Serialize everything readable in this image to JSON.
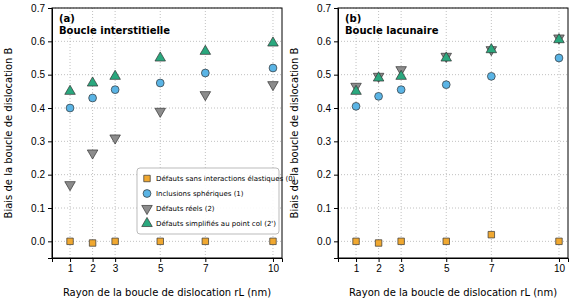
{
  "chart_data": [
    {
      "type": "scatter",
      "title": "(a)",
      "subtitle": "Boucle interstitielle",
      "x_label": "Rayon de la boucle de dislocation rL (nm)",
      "y_label": "Biais de la boucle de dislocation B",
      "x": [
        1,
        2,
        3,
        5,
        7,
        10
      ],
      "xlim": [
        0.2,
        10.4
      ],
      "xticks": [
        1,
        2,
        3,
        5,
        7,
        10
      ],
      "ylim": [
        -0.05,
        0.7
      ],
      "yticks": [
        {
          "value": 0,
          "label": "0.0"
        },
        {
          "value": 0.1,
          "label": "0.1"
        },
        {
          "value": 0.2,
          "label": "0.2"
        },
        {
          "value": 0.3,
          "label": "0.3"
        },
        {
          "value": 0.4,
          "label": "0.4"
        },
        {
          "value": 0.5,
          "label": "0.5"
        },
        {
          "value": 0.6,
          "label": "0.6"
        },
        {
          "value": 0.7,
          "label": "0.7"
        }
      ],
      "grid": true,
      "legend": "lower right",
      "series": [
        {
          "name": "Défauts sans interactions élastiques (0)",
          "color": "#f0a830",
          "marker": "square",
          "values": [
            0,
            -0.005,
            0,
            0,
            0,
            0
          ]
        },
        {
          "name": "Inclusions sphériques (1)",
          "color": "#5ab4e5",
          "marker": "circle",
          "values": [
            0.4,
            0.43,
            0.455,
            0.475,
            0.505,
            0.52
          ]
        },
        {
          "name": "Défauts réels (2)",
          "color": "#8c8c8c",
          "marker": "triangle-down",
          "values": [
            0.17,
            0.265,
            0.31,
            0.39,
            0.44,
            0.47
          ]
        },
        {
          "name": "Défauts simplifiés au point col (2')",
          "color": "#2aa87e",
          "marker": "triangle-up",
          "values": [
            0.45,
            0.475,
            0.495,
            0.55,
            0.57,
            0.595
          ]
        }
      ]
    },
    {
      "type": "scatter",
      "title": "(b)",
      "subtitle": "Boucle lacunaire",
      "x_label": "Rayon de la boucle de dislocation rL (nm)",
      "y_label": "Biais de la boucle de dislocation B",
      "x": [
        1,
        2,
        3,
        5,
        7,
        10
      ],
      "xlim": [
        0.2,
        10.4
      ],
      "xticks": [
        1,
        2,
        3,
        5,
        7,
        10
      ],
      "ylim": [
        -0.05,
        0.7
      ],
      "yticks": [
        {
          "value": 0,
          "label": "0.0"
        },
        {
          "value": 0.1,
          "label": "0.1"
        },
        {
          "value": 0.2,
          "label": "0.2"
        },
        {
          "value": 0.3,
          "label": "0.3"
        },
        {
          "value": 0.4,
          "label": "0.4"
        },
        {
          "value": 0.5,
          "label": "0.5"
        },
        {
          "value": 0.6,
          "label": "0.6"
        },
        {
          "value": 0.7,
          "label": "0.7"
        }
      ],
      "grid": true,
      "legend": false,
      "series": [
        {
          "name": "Défauts sans interactions élastiques (0)",
          "color": "#f0a830",
          "marker": "square",
          "values": [
            0,
            -0.005,
            0,
            0,
            0.02,
            0
          ]
        },
        {
          "name": "Inclusions sphériques (1)",
          "color": "#5ab4e5",
          "marker": "circle",
          "values": [
            0.405,
            0.435,
            0.455,
            0.47,
            0.495,
            0.55
          ]
        },
        {
          "name": "Défauts réels (2)",
          "color": "#8c8c8c",
          "marker": "triangle-down",
          "values": [
            0.465,
            0.495,
            0.515,
            0.555,
            0.575,
            0.61
          ]
        },
        {
          "name": "Défauts simplifiés au point col (2')",
          "color": "#2aa87e",
          "marker": "triangle-up",
          "values": [
            0.45,
            0.49,
            0.495,
            0.55,
            0.575,
            0.605
          ]
        }
      ]
    }
  ]
}
